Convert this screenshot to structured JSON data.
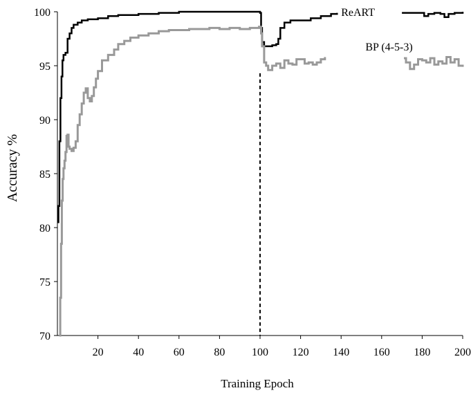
{
  "chart_data": {
    "type": "line",
    "title": "",
    "xlabel": "Training Epoch",
    "ylabel": "Accuracy %",
    "xlim": [
      0,
      200
    ],
    "ylim": [
      70,
      100
    ],
    "xticks": [
      20,
      40,
      60,
      80,
      100,
      120,
      140,
      160,
      180,
      200
    ],
    "xtick_labels": [
      "20",
      "40",
      "60",
      "80",
      "100",
      "120",
      "140",
      "160",
      "180",
      "200"
    ],
    "yticks": [
      70,
      75,
      80,
      85,
      90,
      95,
      100
    ],
    "ytick_labels": [
      "70",
      "75",
      "80",
      "85",
      "90",
      "95",
      "100"
    ],
    "grid": false,
    "legend": "inline labels",
    "vline": {
      "x": 100,
      "y_top": 94.3,
      "style": "dashed"
    },
    "series": [
      {
        "name": "ReART",
        "label_position": {
          "x": 140,
          "y": 100
        },
        "color": "#000000",
        "x": [
          0,
          0.5,
          1,
          1.5,
          2,
          2.5,
          3,
          4,
          5,
          6,
          7,
          8,
          10,
          12,
          15,
          20,
          25,
          30,
          40,
          50,
          60,
          80,
          99.5,
          100,
          100.5,
          101,
          102,
          104,
          106,
          108,
          109,
          110,
          112,
          115,
          120,
          125,
          130,
          135,
          138
        ],
        "values": [
          80.5,
          82.0,
          88.0,
          92.0,
          94.0,
          95.5,
          96.0,
          96.2,
          97.5,
          98.0,
          98.5,
          98.8,
          99.0,
          99.2,
          99.3,
          99.4,
          99.6,
          99.7,
          99.8,
          99.9,
          100.0,
          100.0,
          100.0,
          99.9,
          98.5,
          97.2,
          96.8,
          96.8,
          96.9,
          97.0,
          97.5,
          98.5,
          99.0,
          99.2,
          99.2,
          99.4,
          99.6,
          99.8,
          99.9
        ]
      },
      {
        "name": "ReART",
        "label": "",
        "color": "#000000",
        "x": [
          170,
          175,
          178,
          180,
          181,
          183,
          186,
          189,
          191,
          193,
          196,
          200
        ],
        "values": [
          99.9,
          99.9,
          99.9,
          99.9,
          99.6,
          99.8,
          99.9,
          99.8,
          99.5,
          99.8,
          99.9,
          100.0
        ]
      },
      {
        "name": "BP (4-5-3)",
        "label_position": {
          "x": 152,
          "y": 96.8
        },
        "color": "#999999",
        "x": [
          1,
          1.4,
          1.8,
          2.2,
          2.6,
          3,
          3.5,
          4,
          4.5,
          5,
          5.5,
          6,
          7,
          8,
          9,
          10,
          11,
          12,
          13,
          14,
          15,
          16,
          17,
          18,
          19,
          20,
          22,
          25,
          28,
          30,
          33,
          36,
          40,
          45,
          50,
          55,
          60,
          65,
          70,
          75,
          80,
          85,
          90,
          95,
          99.5,
          100,
          100.5,
          101,
          102,
          103,
          104,
          105,
          106,
          108,
          110,
          112,
          114,
          116,
          118,
          120,
          122,
          124,
          126,
          128,
          130,
          132
        ],
        "values": [
          70,
          73.5,
          78.5,
          82.5,
          84.5,
          85.5,
          86.2,
          87.0,
          88.5,
          88.6,
          87.5,
          87.3,
          87.1,
          87.4,
          88.0,
          89.5,
          90.5,
          91.5,
          92.5,
          92.9,
          92.0,
          91.7,
          92.2,
          93.0,
          93.8,
          94.5,
          95.5,
          96.0,
          96.5,
          97.0,
          97.3,
          97.6,
          97.8,
          98.0,
          98.2,
          98.3,
          98.3,
          98.4,
          98.4,
          98.5,
          98.4,
          98.5,
          98.4,
          98.5,
          98.6,
          98.6,
          98.0,
          96.8,
          95.3,
          95.0,
          94.6,
          94.6,
          95.0,
          95.2,
          94.8,
          95.5,
          95.2,
          95.1,
          95.6,
          95.6,
          95.2,
          95.3,
          95.1,
          95.3,
          95.6,
          95.8
        ]
      },
      {
        "name": "BP (4-5-3)",
        "label": "",
        "color": "#999999",
        "x": [
          171,
          172,
          174,
          176,
          178,
          180,
          182,
          184,
          186,
          188,
          190,
          192,
          194,
          196,
          198,
          200
        ],
        "values": [
          95.7,
          95.3,
          94.7,
          95.1,
          95.6,
          95.5,
          95.3,
          95.7,
          95.1,
          95.4,
          95.2,
          95.8,
          95.3,
          95.6,
          95.0,
          94.9
        ]
      }
    ]
  }
}
